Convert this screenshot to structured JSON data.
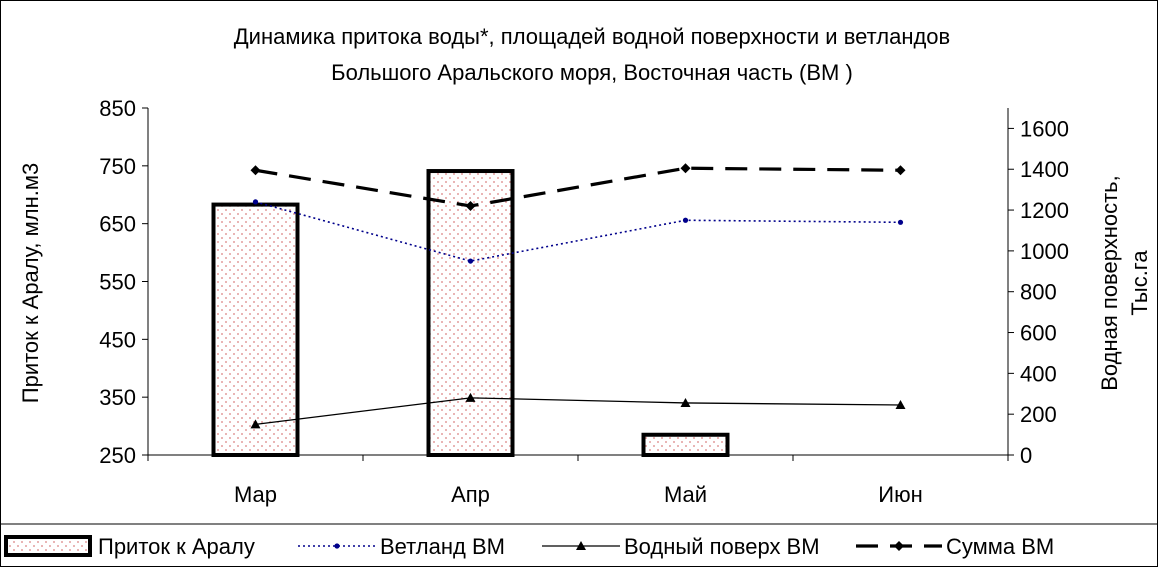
{
  "chart_data": {
    "type": "bar+line",
    "title": "Динамика притока воды*, площадей водной поверхности и ветландов",
    "subtitle": "Большого Аральского моря, Восточная часть  (ВМ )",
    "categories": [
      "Мар",
      "Апр",
      "Май",
      "Июн"
    ],
    "y_left": {
      "label": "Приток к Аралу,  млн.м3",
      "ylim": [
        250,
        850
      ],
      "ticks": [
        250,
        350,
        450,
        550,
        650,
        750,
        850
      ]
    },
    "y_right": {
      "label_line1": "Водная поверхность,",
      "label_line2": "Тыс.га",
      "ylim": [
        0,
        1700
      ],
      "ticks": [
        0,
        200,
        400,
        600,
        800,
        1000,
        1200,
        1400,
        1600
      ]
    },
    "series": [
      {
        "name": "Приток к Аралу",
        "type": "bar",
        "axis": "left",
        "values": [
          683,
          741,
          285,
          null
        ],
        "color": "#000000",
        "fill": "#f4c4c4"
      },
      {
        "name": "Ветланд ВМ",
        "type": "line",
        "axis": "right",
        "values": [
          1240,
          950,
          1150,
          1140
        ],
        "color": "#00008b",
        "dash": "dotted",
        "marker": "dot"
      },
      {
        "name": "Водный поверх ВМ",
        "type": "line",
        "axis": "right",
        "values": [
          150,
          280,
          255,
          245
        ],
        "color": "#000000",
        "dash": "solid",
        "marker": "triangle"
      },
      {
        "name": "Сумма ВМ",
        "type": "line",
        "axis": "right",
        "values": [
          1395,
          1220,
          1405,
          1395
        ],
        "color": "#000000",
        "dash": "dashed",
        "marker": "diamond"
      }
    ],
    "legend_position": "bottom"
  }
}
